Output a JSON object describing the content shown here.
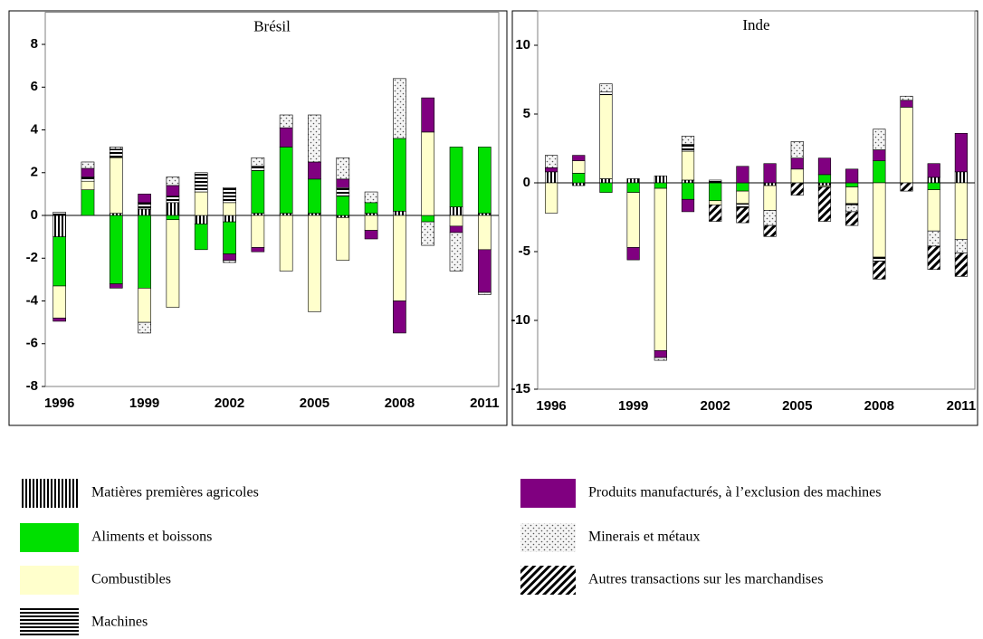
{
  "chart_data": [
    {
      "type": "stacked-bar",
      "title": "Brésil",
      "categories": [
        "1996",
        null,
        null,
        "1999",
        null,
        null,
        "2002",
        null,
        null,
        "2005",
        null,
        null,
        "2008",
        null,
        null,
        "2011"
      ],
      "ylim": [
        -8,
        9.5
      ],
      "yticks": [
        -8,
        -6,
        -4,
        -2,
        0,
        2,
        4,
        6,
        8
      ],
      "series": [
        {
          "values": [
            -1.0,
            0,
            0.1,
            0.3,
            0.6,
            -0.4,
            -0.3,
            0.1,
            0.1,
            0.1,
            -0.1,
            0.1,
            0.2,
            0,
            0.4,
            0.1
          ]
        },
        {
          "values": [
            -2.3,
            1.2,
            -3.2,
            -3.4,
            -0.2,
            -1.2,
            -1.5,
            2.0,
            3.1,
            1.6,
            0.9,
            0.5,
            3.4,
            -0.3,
            2.8,
            3.1
          ]
        },
        {
          "values": [
            -1.5,
            0.4,
            2.6,
            -1.6,
            -4.1,
            1.1,
            0.6,
            -1.5,
            -2.6,
            -4.5,
            -2.0,
            -0.7,
            -4.0,
            3.9,
            -0.5,
            -1.6
          ]
        },
        {
          "values": [
            0.15,
            0.2,
            0.4,
            0.3,
            0.3,
            0.9,
            0.7,
            0.2,
            0,
            0,
            0.4,
            0,
            0,
            0,
            0,
            0
          ]
        },
        {
          "values": [
            -0.15,
            0.4,
            -0.2,
            0.4,
            0.5,
            0,
            -0.3,
            -0.2,
            0.9,
            0.8,
            0.4,
            -0.4,
            -1.5,
            1.6,
            -0.3,
            -2.0
          ]
        },
        {
          "values": [
            0,
            0.3,
            0.1,
            -0.5,
            0.4,
            0,
            -0.1,
            0.4,
            0.6,
            2.2,
            1.0,
            0.5,
            2.8,
            -1.1,
            -1.8,
            -0.1
          ]
        },
        {
          "values": [
            0,
            0,
            0,
            0,
            0,
            0,
            0,
            0,
            0,
            0,
            0,
            0,
            0,
            0,
            0,
            0
          ]
        }
      ]
    },
    {
      "type": "stacked-bar",
      "title": "Inde",
      "categories": [
        "1996",
        null,
        null,
        "1999",
        null,
        null,
        "2002",
        null,
        null,
        "2005",
        null,
        null,
        "2008",
        null,
        null,
        "2011"
      ],
      "ylim": [
        -15,
        12.5
      ],
      "yticks": [
        -15,
        -10,
        -5,
        0,
        5,
        10
      ],
      "series": [
        {
          "values": [
            0.8,
            -0.2,
            0.3,
            0.3,
            0.5,
            0.2,
            0,
            0,
            -0.2,
            0,
            -0.2,
            0,
            0,
            0,
            0.4,
            0.8
          ]
        },
        {
          "values": [
            0,
            0.7,
            -0.7,
            -0.7,
            -0.4,
            -1.2,
            -1.3,
            -0.6,
            0,
            0,
            0.6,
            -0.3,
            1.6,
            0,
            -0.5,
            0
          ]
        },
        {
          "values": [
            -2.2,
            0.9,
            6.1,
            -4.0,
            -11.8,
            2.1,
            -0.3,
            -0.9,
            -1.8,
            1.0,
            -0.1,
            -1.2,
            -5.4,
            5.5,
            -3.0,
            -4.1
          ]
        },
        {
          "values": [
            0,
            0,
            0.2,
            0,
            0,
            0.5,
            0.2,
            -0.3,
            0,
            0,
            0,
            -0.1,
            -0.3,
            0,
            0,
            0
          ]
        },
        {
          "values": [
            0.3,
            0.4,
            0,
            -0.9,
            -0.5,
            -0.9,
            0,
            1.2,
            1.4,
            0.8,
            1.2,
            1.0,
            0.8,
            0.5,
            1.0,
            2.8
          ]
        },
        {
          "values": [
            0.9,
            0,
            0.6,
            0,
            -0.2,
            0.6,
            0,
            0,
            -1.1,
            1.2,
            0,
            -0.5,
            1.5,
            0.3,
            -1.1,
            -1.0
          ]
        },
        {
          "values": [
            0,
            0,
            0,
            0,
            0,
            0,
            -1.2,
            -1.1,
            -0.8,
            -0.9,
            -2.5,
            -1.0,
            -1.3,
            -0.6,
            -1.7,
            -1.7
          ]
        }
      ]
    }
  ],
  "legend": {
    "items": [
      {
        "name": "Matières premières agricoles",
        "color": "#000000",
        "pattern": "vertical-stripes"
      },
      {
        "name": "Aliments et boissons",
        "color": "#00e000"
      },
      {
        "name": "Combustibles",
        "color": "#ffffcc"
      },
      {
        "name": "Machines",
        "color": "#000000",
        "pattern": "horizontal-stripes"
      },
      {
        "name": "Produits manufacturés, à l’exclusion des machines",
        "color": "#800080"
      },
      {
        "name": "Minerais et métaux",
        "color": "#a0a0a0",
        "pattern": "dots"
      },
      {
        "name": "Autres transactions sur les marchandises",
        "color": "#000000",
        "pattern": "diagonal-stripes"
      }
    ]
  }
}
